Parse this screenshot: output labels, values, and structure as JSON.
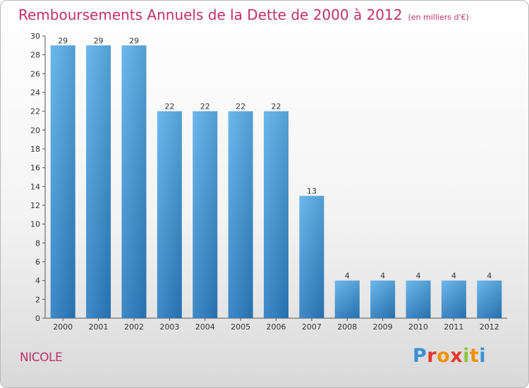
{
  "chart_data": {
    "type": "bar",
    "title": "Remboursements Annuels de la Dette de 2000 à 2012",
    "subtitle": "(en milliers d'€)",
    "categories": [
      "2000",
      "2001",
      "2002",
      "2003",
      "2004",
      "2005",
      "2006",
      "2007",
      "2008",
      "2009",
      "2010",
      "2011",
      "2012"
    ],
    "values": [
      29,
      29,
      29,
      22,
      22,
      22,
      22,
      13,
      4,
      4,
      4,
      4,
      4
    ],
    "ylim": [
      0,
      30
    ],
    "yticks": [
      0,
      2,
      4,
      6,
      8,
      10,
      12,
      14,
      16,
      18,
      20,
      22,
      24,
      26,
      28,
      30
    ],
    "grid": false,
    "bar_color": "#3a8fd6",
    "xlabel": "",
    "ylabel": ""
  },
  "footer": {
    "commune": "NICOLE",
    "logo_text": "Proxiti",
    "logo_colors": [
      "#3a8fd6",
      "#e5362a",
      "#f29100",
      "#e5362a",
      "#8cc63f",
      "#f29100",
      "#3a8fd6"
    ]
  },
  "colors": {
    "title": "#c0306a",
    "bar_top": "#5cb0ea",
    "bar_bottom": "#2a7cc0"
  }
}
